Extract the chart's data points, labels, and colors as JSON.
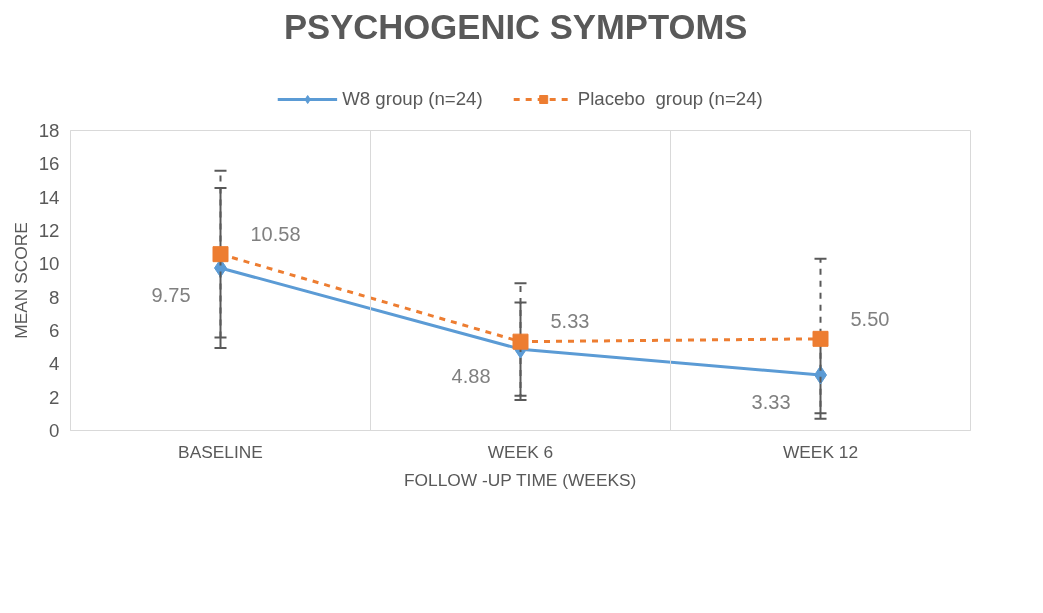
{
  "chart_data": {
    "type": "line",
    "title": "PSYCHOGENIC  SYMPTOMS",
    "xlabel": "FOLLOW -UP TIME (WEEKS)",
    "ylabel": "MEAN SCORE",
    "categories": [
      "BASELINE",
      "WEEK 6",
      "WEEK 12"
    ],
    "series": [
      {
        "name": "W8 group (n=24)",
        "color": "#5b9bd5",
        "values": [
          9.75,
          4.88,
          3.33
        ],
        "value_labels": [
          "9.75",
          "4.88",
          "3.33"
        ],
        "errors": [
          4.8,
          2.8,
          2.3
        ],
        "marker": "diamond",
        "line_style": "solid"
      },
      {
        "name": "Placebo  group (n=24)",
        "color": "#ed7d31",
        "values": [
          10.58,
          5.33,
          5.5
        ],
        "value_labels": [
          "10.58",
          "5.33",
          "5.50"
        ],
        "errors": [
          5.0,
          3.5,
          4.8
        ],
        "marker": "square",
        "line_style": "dashed"
      }
    ],
    "ylim": [
      0,
      18
    ],
    "yticks": [
      0,
      2,
      4,
      6,
      8,
      10,
      12,
      14,
      16,
      18
    ],
    "grid": "x",
    "legend": "top"
  }
}
